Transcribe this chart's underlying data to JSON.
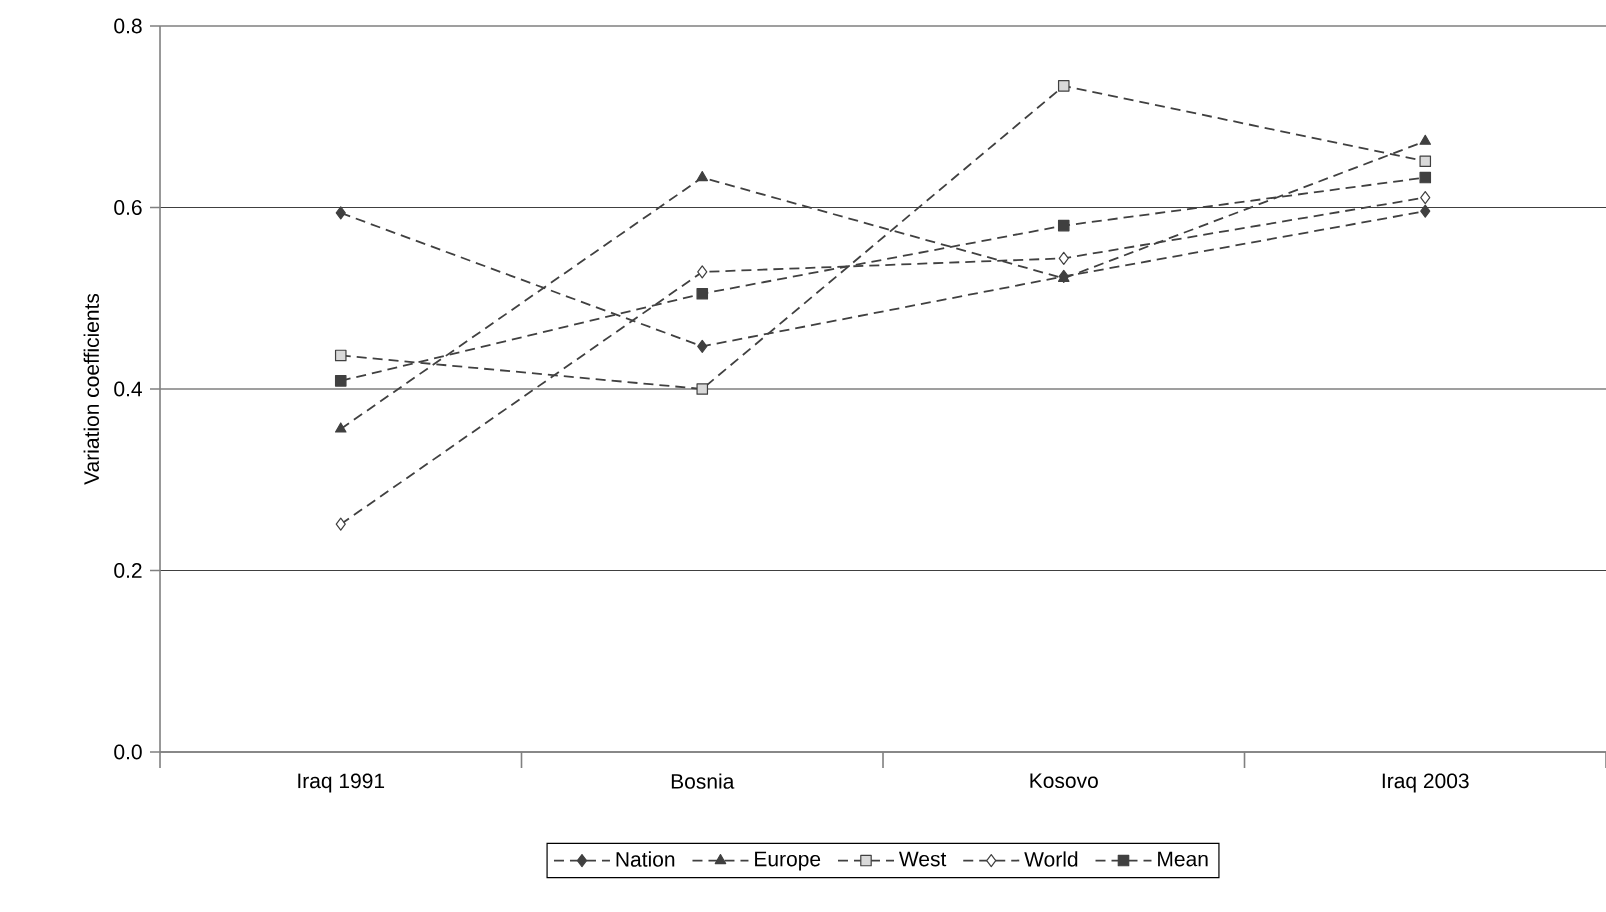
{
  "chart_data": {
    "type": "line",
    "ylabel": "Variation coefficients",
    "categories": [
      "Iraq 1991",
      "Bosnia",
      "Kosovo",
      "Iraq 2003"
    ],
    "series": [
      {
        "name": "Nation",
        "color": "#404040",
        "marker": "diamond",
        "values": [
          0.594,
          0.447,
          0.524,
          0.596
        ]
      },
      {
        "name": "Europe",
        "color": "#404040",
        "marker": "triangle",
        "values": [
          0.356,
          0.633,
          0.522,
          0.673
        ]
      },
      {
        "name": "West",
        "color": "#d9d9d9",
        "marker": "square",
        "values": [
          0.437,
          0.4,
          0.734,
          0.651
        ]
      },
      {
        "name": "World",
        "color": "#ffffff",
        "marker": "diamond",
        "values": [
          0.251,
          0.529,
          0.544,
          0.611
        ]
      },
      {
        "name": "Mean",
        "color": "#404040",
        "marker": "square",
        "values": [
          0.409,
          0.505,
          0.58,
          0.633
        ]
      }
    ],
    "ylim": [
      0.0,
      0.8
    ],
    "yticks": [
      {
        "value": 0.0,
        "label": "0.0"
      },
      {
        "value": 0.2,
        "label": "0.2"
      },
      {
        "value": 0.4,
        "label": "0.4"
      },
      {
        "value": 0.6,
        "label": "0.6"
      },
      {
        "value": 0.8,
        "label": "0.8"
      }
    ],
    "grid": "y",
    "legend": "bottom",
    "line_style": "dashed"
  }
}
